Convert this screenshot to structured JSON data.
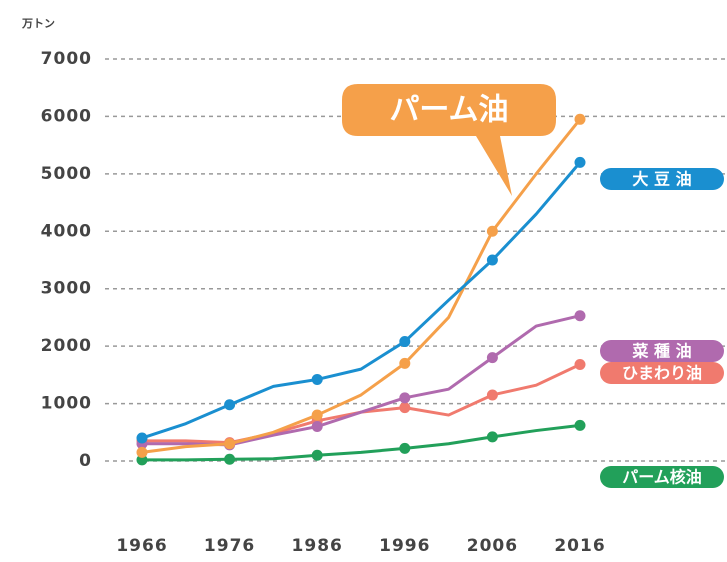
{
  "chart_data": {
    "type": "line",
    "y_axis_label": "万トン",
    "x": [
      1966,
      1971,
      1976,
      1981,
      1986,
      1991,
      1996,
      2001,
      2006,
      2011,
      2016
    ],
    "xlim": [
      1966,
      2016
    ],
    "xticks": [
      1966,
      1976,
      1986,
      1996,
      2006,
      2016
    ],
    "ylim": [
      0,
      7000
    ],
    "yticks": [
      0,
      1000,
      2000,
      3000,
      4000,
      5000,
      6000,
      7000
    ],
    "grid": true,
    "series": [
      {
        "name": "パーム油",
        "color": "#f5a04a",
        "values": [
          150,
          250,
          300,
          500,
          800,
          1150,
          1700,
          2500,
          4000,
          5000,
          5950
        ]
      },
      {
        "name": "大 豆 油",
        "color": "#1a8fd0",
        "values": [
          400,
          650,
          980,
          1300,
          1420,
          1600,
          2080,
          2800,
          3500,
          4300,
          5200
        ]
      },
      {
        "name": "菜 種 油",
        "color": "#b06aae",
        "values": [
          300,
          300,
          280,
          450,
          600,
          850,
          1100,
          1250,
          1800,
          2350,
          2530
        ]
      },
      {
        "name": "ひまわり油",
        "color": "#f07a6e",
        "values": [
          350,
          350,
          320,
          480,
          700,
          850,
          930,
          800,
          1150,
          1320,
          1680
        ]
      },
      {
        "name": "パーム核油",
        "color": "#22a05a",
        "values": [
          20,
          20,
          30,
          40,
          100,
          150,
          220,
          300,
          420,
          530,
          620
        ]
      }
    ]
  }
}
